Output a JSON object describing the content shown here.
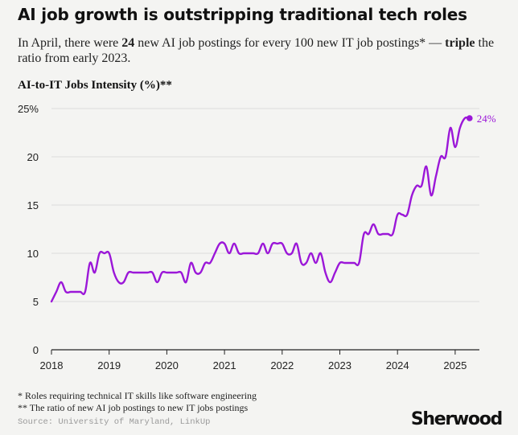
{
  "title": "AI job growth is outstripping traditional tech roles",
  "subtitle": {
    "part1": "In April, there were ",
    "bold1": "24",
    "part2": " new AI job postings for every 100 new IT job postings* — ",
    "bold2": "triple",
    "part3": " the ratio from early 2023."
  },
  "footnotes": {
    "note1": "* Roles requiring technical IT skills like software engineering",
    "note2": "** The ratio of new AI job postings to new IT jobs postings"
  },
  "source": "Source: University of Maryland, LinkUp",
  "brand": "Sherwood",
  "colors": {
    "line": "#9b17d8",
    "background": "#f4f4f2",
    "grid": "#dcdcdc",
    "axis": "#222222"
  },
  "chart_data": {
    "type": "line",
    "ylabel": "AI-to-IT Jobs Intensity (%)**",
    "ylim": [
      0,
      25
    ],
    "yticks": [
      0,
      5,
      10,
      15,
      20,
      25
    ],
    "ytick_labels": [
      "0",
      "5",
      "10",
      "15",
      "20",
      "25%"
    ],
    "xlim": [
      2018,
      2025.42
    ],
    "xticks": [
      2018,
      2019,
      2020,
      2021,
      2022,
      2023,
      2024,
      2025
    ],
    "xtick_labels": [
      "2018",
      "2019",
      "2020",
      "2021",
      "2022",
      "2023",
      "2024",
      "2025"
    ],
    "grid": "horizontal",
    "end_label": "24%",
    "series": [
      {
        "x": [
          2018.0,
          2018.083,
          2018.167,
          2018.25,
          2018.333,
          2018.417,
          2018.5,
          2018.583,
          2018.667,
          2018.75,
          2018.833,
          2018.917,
          2019.0,
          2019.083,
          2019.167,
          2019.25,
          2019.333,
          2019.417,
          2019.5,
          2019.583,
          2019.667,
          2019.75,
          2019.833,
          2019.917,
          2020.0,
          2020.083,
          2020.167,
          2020.25,
          2020.333,
          2020.417,
          2020.5,
          2020.583,
          2020.667,
          2020.75,
          2020.833,
          2020.917,
          2021.0,
          2021.083,
          2021.167,
          2021.25,
          2021.333,
          2021.417,
          2021.5,
          2021.583,
          2021.667,
          2021.75,
          2021.833,
          2021.917,
          2022.0,
          2022.083,
          2022.167,
          2022.25,
          2022.333,
          2022.417,
          2022.5,
          2022.583,
          2022.667,
          2022.75,
          2022.833,
          2022.917,
          2023.0,
          2023.083,
          2023.167,
          2023.25,
          2023.333,
          2023.417,
          2023.5,
          2023.583,
          2023.667,
          2023.75,
          2023.833,
          2023.917,
          2024.0,
          2024.083,
          2024.167,
          2024.25,
          2024.333,
          2024.417,
          2024.5,
          2024.583,
          2024.667,
          2024.75,
          2024.833,
          2024.917,
          2025.0,
          2025.083,
          2025.167,
          2025.25
        ],
        "y": [
          5.0,
          6.0,
          7.0,
          6.0,
          6.0,
          6.0,
          6.0,
          6.0,
          9.0,
          8.0,
          10.0,
          10.0,
          10.0,
          8.0,
          7.0,
          7.0,
          8.0,
          8.0,
          8.0,
          8.0,
          8.0,
          8.0,
          7.0,
          8.0,
          8.0,
          8.0,
          8.0,
          8.0,
          7.0,
          9.0,
          8.0,
          8.0,
          9.0,
          9.0,
          10.0,
          11.0,
          11.0,
          10.0,
          11.0,
          10.0,
          10.0,
          10.0,
          10.0,
          10.0,
          11.0,
          10.0,
          11.0,
          11.0,
          11.0,
          10.0,
          10.0,
          11.0,
          9.0,
          9.0,
          10.0,
          9.0,
          10.0,
          8.0,
          7.0,
          8.0,
          9.0,
          9.0,
          9.0,
          9.0,
          9.0,
          12.0,
          12.0,
          13.0,
          12.0,
          12.0,
          12.0,
          12.0,
          14.0,
          14.0,
          14.0,
          16.0,
          17.0,
          17.0,
          19.0,
          16.0,
          18.0,
          20.0,
          20.0,
          23.0,
          21.0,
          23.0,
          24.0,
          24.0
        ]
      }
    ]
  }
}
